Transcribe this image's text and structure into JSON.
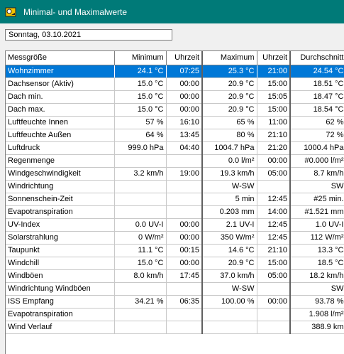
{
  "window": {
    "title": "Minimal- und Maximalwerte"
  },
  "date_field": {
    "value": "Sonntag, 03.10.2021"
  },
  "table": {
    "headers": [
      "Messgröße",
      "Minimum",
      "Uhrzeit",
      "Maximum",
      "Uhrzeit",
      "Durchschnitt"
    ],
    "selected_row": 0,
    "rows": [
      [
        "Wohnzimmer",
        "24.1 °C",
        "07:25",
        "25.3 °C",
        "21:00",
        "24.54 °C"
      ],
      [
        "Dachsensor (Aktiv)",
        "15.0 °C",
        "00:00",
        "20.9 °C",
        "15:00",
        "18.51 °C"
      ],
      [
        "Dach min.",
        "15.0 °C",
        "00:00",
        "20.9 °C",
        "15:05",
        "18.47 °C"
      ],
      [
        "Dach max.",
        "15.0 °C",
        "00:00",
        "20.9 °C",
        "15:00",
        "18.54 °C"
      ],
      [
        "Luftfeuchte Innen",
        "57 %",
        "16:10",
        "65 %",
        "11:00",
        "62 %"
      ],
      [
        "Luftfeuchte Außen",
        "64 %",
        "13:45",
        "80 %",
        "21:10",
        "72 %"
      ],
      [
        "Luftdruck",
        "999.0 hPa",
        "04:40",
        "1004.7 hPa",
        "21:20",
        "1000.4 hPa"
      ],
      [
        "Regenmenge",
        "",
        "",
        "0.0 l/m²",
        "00:00",
        "#0.000 l/m²"
      ],
      [
        "Windgeschwindigkeit",
        "3.2 km/h",
        "19:00",
        "19.3 km/h",
        "05:00",
        "8.7 km/h"
      ],
      [
        "Windrichtung",
        "",
        "",
        "W-SW",
        "",
        "SW"
      ],
      [
        "Sonnenschein-Zeit",
        "",
        "",
        "5 min",
        "12:45",
        "#25 min."
      ],
      [
        "Evapotranspiration",
        "",
        "",
        "0.203 mm",
        "14:00",
        "#1.521 mm"
      ],
      [
        "UV-Index",
        "0.0 UV-I",
        "00:00",
        "2.1 UV-I",
        "12:45",
        "1.0 UV-I"
      ],
      [
        "Solarstrahlung",
        "0 W/m²",
        "00:00",
        "350 W/m²",
        "12:45",
        "112 W/m²"
      ],
      [
        "Taupunkt",
        "11.1 °C",
        "00:15",
        "14.6 °C",
        "21:10",
        "13.3 °C"
      ],
      [
        "Windchill",
        "15.0 °C",
        "00:00",
        "20.9 °C",
        "15:00",
        "18.5 °C"
      ],
      [
        "Windböen",
        "8.0 km/h",
        "17:45",
        "37.0 km/h",
        "05:00",
        "18.2 km/h"
      ],
      [
        "Windrichtung Windböen",
        "",
        "",
        "W-SW",
        "",
        "SW"
      ],
      [
        "ISS Empfang",
        "34.21 %",
        "06:35",
        "100.00 %",
        "00:00",
        "93.78 %"
      ],
      [
        "Evapotranspiration",
        "",
        "",
        "",
        "",
        "1.908 l/m²"
      ],
      [
        "Wind Verlauf",
        "",
        "",
        "",
        "",
        "388.9 km"
      ]
    ]
  },
  "colors": {
    "titlebar": "#007a78",
    "selection": "#0078d7"
  },
  "icons": {
    "app": "weather-station-icon"
  }
}
